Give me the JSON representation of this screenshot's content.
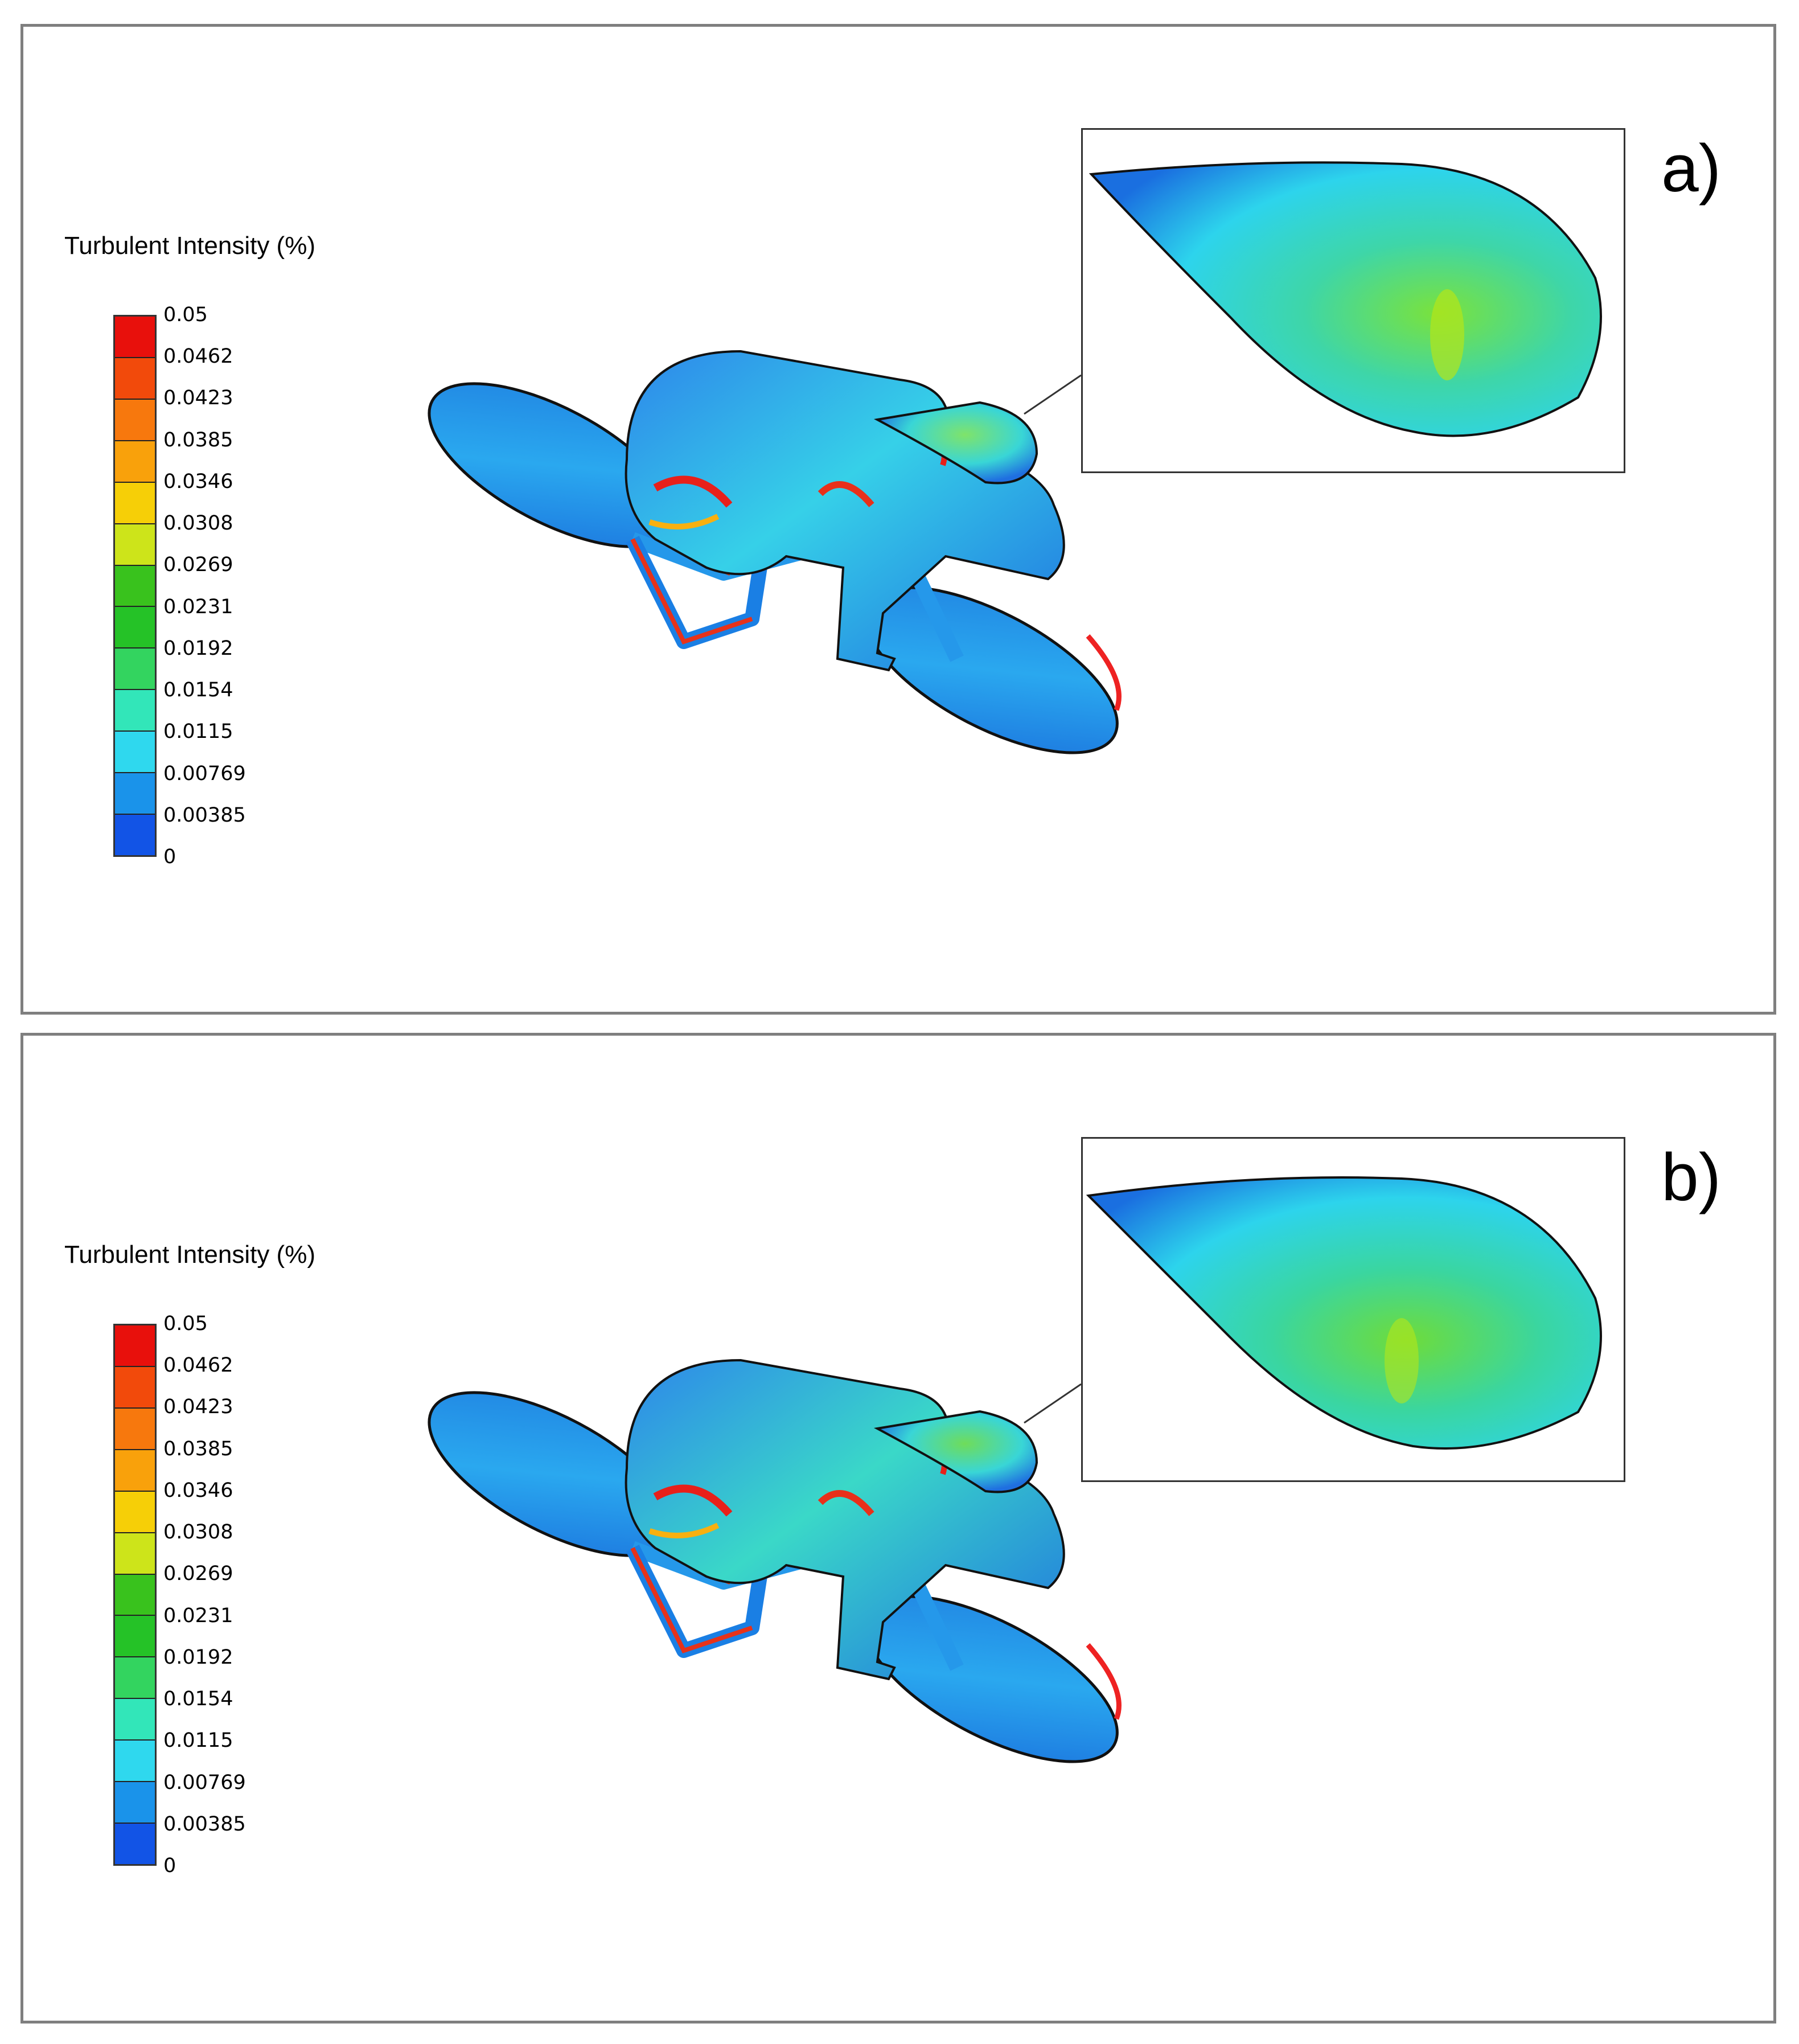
{
  "panels": [
    {
      "label": "a)",
      "legend": {
        "title": "Turbulent Intensity (%)",
        "ticks": [
          "0.05",
          "0.0462",
          "0.0423",
          "0.0385",
          "0.0346",
          "0.0308",
          "0.0269",
          "0.0231",
          "0.0192",
          "0.0154",
          "0.0115",
          "0.00769",
          "0.00385",
          "0"
        ],
        "colors": [
          "#e8100c",
          "#f24a0b",
          "#f7780d",
          "#f9a10b",
          "#f6cf07",
          "#cde41a",
          "#39c21d",
          "#25c227",
          "#33d45f",
          "#32e6b9",
          "#2fd8ee",
          "#1a93ea",
          "#1254e6",
          "#0b17ea"
        ]
      }
    },
    {
      "label": "b)",
      "legend": {
        "title": "Turbulent Intensity (%)",
        "ticks": [
          "0.05",
          "0.0462",
          "0.0423",
          "0.0385",
          "0.0346",
          "0.0308",
          "0.0269",
          "0.0231",
          "0.0192",
          "0.0154",
          "0.0115",
          "0.00769",
          "0.00385",
          "0"
        ],
        "colors": [
          "#e8100c",
          "#f24a0b",
          "#f7780d",
          "#f9a10b",
          "#f6cf07",
          "#cde41a",
          "#39c21d",
          "#25c227",
          "#33d45f",
          "#32e6b9",
          "#2fd8ee",
          "#1a93ea",
          "#1254e6",
          "#0b17ea"
        ]
      }
    }
  ]
}
